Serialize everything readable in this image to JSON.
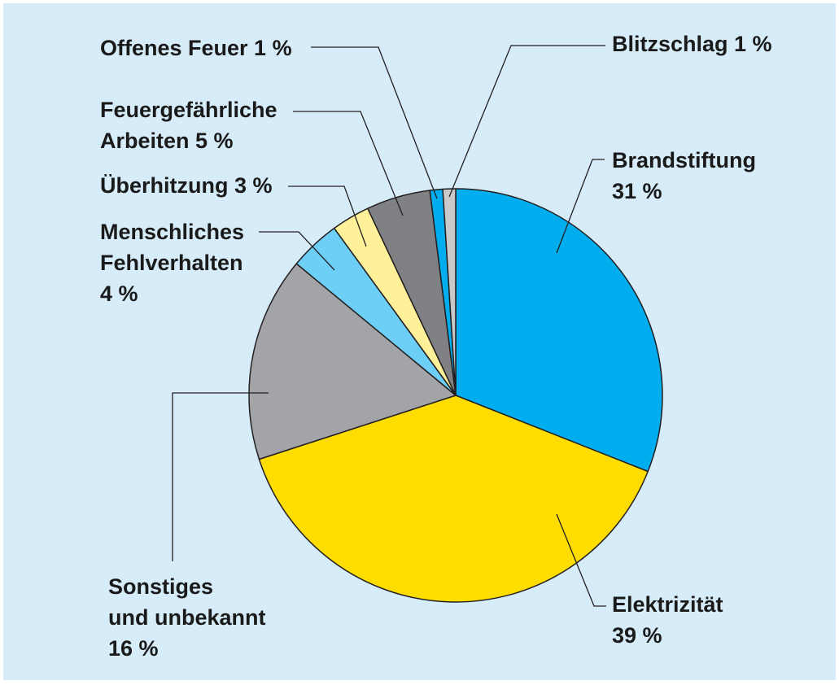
{
  "chart_data": {
    "type": "pie",
    "title": "",
    "background": "#d6ecf8",
    "slices": [
      {
        "label_lines": [
          "Brandstiftung",
          "31 %"
        ],
        "value": 31,
        "color": "#00aeef"
      },
      {
        "label_lines": [
          "Elektrizität",
          "39 %"
        ],
        "value": 39,
        "color": "#ffdd00"
      },
      {
        "label_lines": [
          "Sonstiges",
          "und unbekannt",
          "16 %"
        ],
        "value": 16,
        "color": "#a3a4a7"
      },
      {
        "label_lines": [
          "Menschliches",
          "Fehlverhalten",
          "4 %"
        ],
        "value": 4,
        "color": "#6dcff6"
      },
      {
        "label_lines": [
          "Überhitzung 3 %"
        ],
        "value": 3,
        "color": "#fff19a"
      },
      {
        "label_lines": [
          "Feuergefährliche",
          "Arbeiten 5 %"
        ],
        "value": 5,
        "color": "#808184"
      },
      {
        "label_lines": [
          "Offenes Feuer 1 %"
        ],
        "value": 1,
        "color": "#00aeef"
      },
      {
        "label_lines": [
          "Blitzschlag 1 %"
        ],
        "value": 1,
        "color": "#c8c9cb"
      }
    ]
  }
}
